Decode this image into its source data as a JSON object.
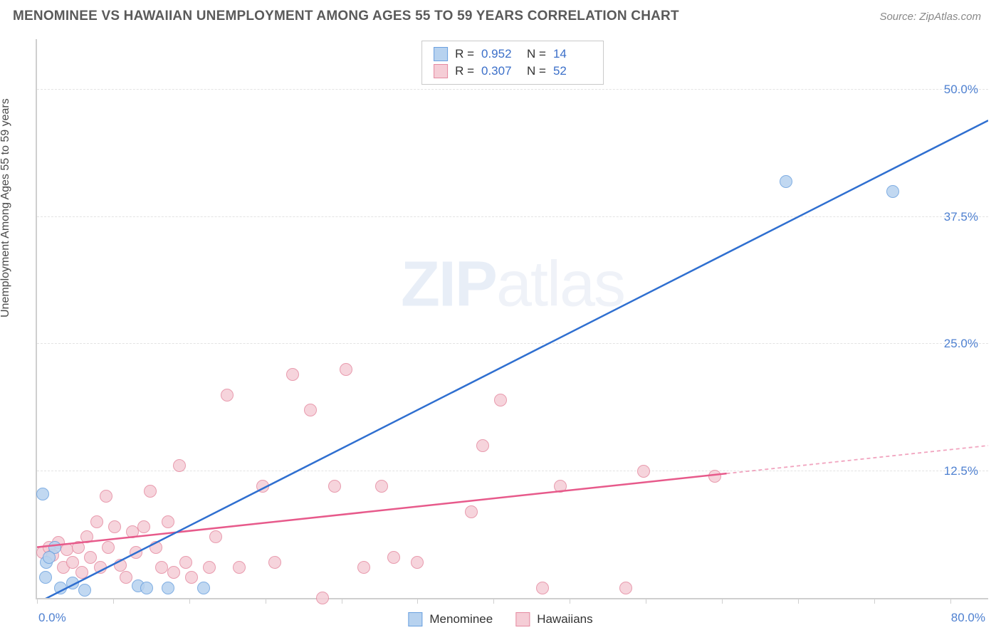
{
  "header": {
    "title": "MENOMINEE VS HAWAIIAN UNEMPLOYMENT AMONG AGES 55 TO 59 YEARS CORRELATION CHART",
    "source": "Source: ZipAtlas.com"
  },
  "axes": {
    "ylabel": "Unemployment Among Ages 55 to 59 years",
    "x_min_label": "0.0%",
    "x_max_label": "80.0%",
    "y_ticks": [
      {
        "value": 12.5,
        "label": "12.5%"
      },
      {
        "value": 25.0,
        "label": "25.0%"
      },
      {
        "value": 37.5,
        "label": "37.5%"
      },
      {
        "value": 50.0,
        "label": "50.0%"
      }
    ],
    "x_tick_positions": [
      0,
      6.4,
      12.8,
      19.2,
      25.6,
      32.0,
      38.4,
      44.8,
      51.2,
      57.6,
      64.0,
      70.4,
      76.8
    ],
    "x_range": [
      0,
      80
    ],
    "y_range": [
      0,
      55
    ]
  },
  "watermark": {
    "bold": "ZIP",
    "rest": "atlas"
  },
  "series": {
    "menominee": {
      "label": "Menominee",
      "color_fill": "#b7d2ef",
      "color_stroke": "#6aa0df",
      "line_color": "#2f6fd0",
      "marker_radius": 9,
      "R": "0.952",
      "N": "14",
      "trend": {
        "x1": 0,
        "y1": -0.5,
        "x2": 80,
        "y2": 47.0,
        "solid_until_x": 80
      },
      "points": [
        {
          "x": 0.5,
          "y": 10.2
        },
        {
          "x": 0.8,
          "y": 3.5
        },
        {
          "x": 0.7,
          "y": 2.0
        },
        {
          "x": 1.5,
          "y": 5.0
        },
        {
          "x": 2.0,
          "y": 1.0
        },
        {
          "x": 1.0,
          "y": 4.0
        },
        {
          "x": 4.0,
          "y": 0.8
        },
        {
          "x": 8.5,
          "y": 1.2
        },
        {
          "x": 9.2,
          "y": 1.0
        },
        {
          "x": 11.0,
          "y": 1.0
        },
        {
          "x": 14.0,
          "y": 1.0
        },
        {
          "x": 3.0,
          "y": 1.5
        },
        {
          "x": 63.0,
          "y": 41.0
        },
        {
          "x": 72.0,
          "y": 40.0
        }
      ]
    },
    "hawaiians": {
      "label": "Hawaiians",
      "color_fill": "#f5cdd6",
      "color_stroke": "#e58aa0",
      "line_color": "#e75a8b",
      "marker_radius": 9,
      "R": "0.307",
      "N": "52",
      "trend": {
        "x1": 0,
        "y1": 5.0,
        "x2": 80,
        "y2": 15.0,
        "solid_until_x": 58
      },
      "points": [
        {
          "x": 0.5,
          "y": 4.5
        },
        {
          "x": 1.0,
          "y": 5.0
        },
        {
          "x": 1.3,
          "y": 4.2
        },
        {
          "x": 1.8,
          "y": 5.5
        },
        {
          "x": 2.2,
          "y": 3.0
        },
        {
          "x": 2.5,
          "y": 4.8
        },
        {
          "x": 3.0,
          "y": 3.5
        },
        {
          "x": 3.5,
          "y": 5.0
        },
        {
          "x": 3.8,
          "y": 2.5
        },
        {
          "x": 4.2,
          "y": 6.0
        },
        {
          "x": 4.5,
          "y": 4.0
        },
        {
          "x": 5.0,
          "y": 7.5
        },
        {
          "x": 5.3,
          "y": 3.0
        },
        {
          "x": 5.8,
          "y": 10.0
        },
        {
          "x": 6.0,
          "y": 5.0
        },
        {
          "x": 6.5,
          "y": 7.0
        },
        {
          "x": 7.0,
          "y": 3.2
        },
        {
          "x": 7.5,
          "y": 2.0
        },
        {
          "x": 8.0,
          "y": 6.5
        },
        {
          "x": 8.3,
          "y": 4.5
        },
        {
          "x": 9.0,
          "y": 7.0
        },
        {
          "x": 9.5,
          "y": 10.5
        },
        {
          "x": 10.0,
          "y": 5.0
        },
        {
          "x": 10.5,
          "y": 3.0
        },
        {
          "x": 11.0,
          "y": 7.5
        },
        {
          "x": 11.5,
          "y": 2.5
        },
        {
          "x": 12.0,
          "y": 13.0
        },
        {
          "x": 12.5,
          "y": 3.5
        },
        {
          "x": 13.0,
          "y": 2.0
        },
        {
          "x": 14.5,
          "y": 3.0
        },
        {
          "x": 15.0,
          "y": 6.0
        },
        {
          "x": 16.0,
          "y": 20.0
        },
        {
          "x": 17.0,
          "y": 3.0
        },
        {
          "x": 19.0,
          "y": 11.0
        },
        {
          "x": 20.0,
          "y": 3.5
        },
        {
          "x": 21.5,
          "y": 22.0
        },
        {
          "x": 23.0,
          "y": 18.5
        },
        {
          "x": 24.0,
          "y": 0.0
        },
        {
          "x": 25.0,
          "y": 11.0
        },
        {
          "x": 26.0,
          "y": 22.5
        },
        {
          "x": 27.5,
          "y": 3.0
        },
        {
          "x": 29.0,
          "y": 11.0
        },
        {
          "x": 30.0,
          "y": 4.0
        },
        {
          "x": 32.0,
          "y": 3.5
        },
        {
          "x": 36.5,
          "y": 8.5
        },
        {
          "x": 37.5,
          "y": 15.0
        },
        {
          "x": 39.0,
          "y": 19.5
        },
        {
          "x": 42.5,
          "y": 1.0
        },
        {
          "x": 44.0,
          "y": 11.0
        },
        {
          "x": 49.5,
          "y": 1.0
        },
        {
          "x": 51.0,
          "y": 12.5
        },
        {
          "x": 57.0,
          "y": 12.0
        }
      ]
    }
  },
  "styling": {
    "background": "#ffffff",
    "axis_color": "#cfcfcf",
    "grid_color": "#e3e3e3",
    "tick_label_color": "#4f81d1",
    "title_color": "#5a5a5a",
    "source_color": "#888888"
  }
}
